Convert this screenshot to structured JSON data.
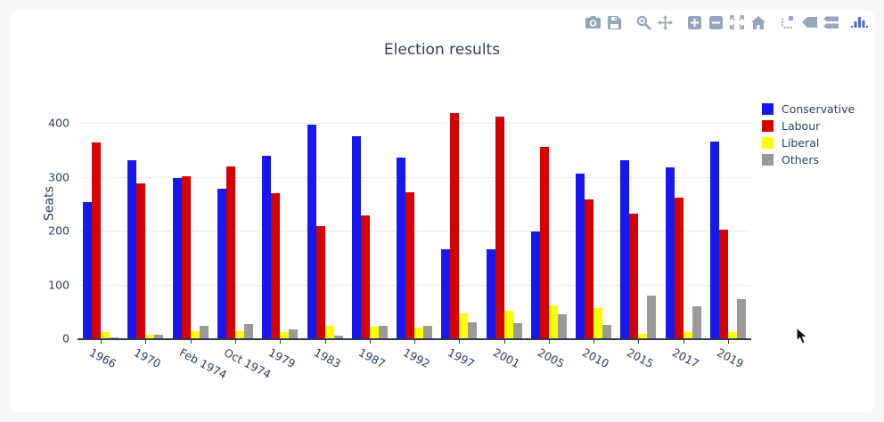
{
  "page": {
    "background_color": "#f7f7f8",
    "card_background_color": "#ffffff"
  },
  "toolbar": {
    "icon_color": "#97a5bb",
    "logo_color": "#4a69d4",
    "icons": [
      "camera-icon",
      "save-icon",
      "zoom-icon",
      "pan-icon",
      "zoom-in-icon",
      "zoom-out-icon",
      "autoscale-icon",
      "reset-axes-icon",
      "spikelines-icon",
      "hover-closest-icon",
      "hover-compare-icon",
      "plotly-logo-icon"
    ]
  },
  "chart_data": {
    "type": "bar",
    "title": "Election results",
    "xlabel": "",
    "ylabel": "Seats",
    "grid": true,
    "legend_position": "right",
    "tick_angle": 28,
    "ylim": [
      0,
      440
    ],
    "yticks": [
      0,
      100,
      200,
      300,
      400
    ],
    "categories": [
      "1966",
      "1970",
      "Feb 1974",
      "Oct 1974",
      "1979",
      "1983",
      "1987",
      "1992",
      "1997",
      "2001",
      "2005",
      "2010",
      "2015",
      "2017",
      "2019"
    ],
    "series": [
      {
        "name": "Conservative",
        "color": "#1717ef",
        "values": [
          253,
          330,
          297,
          277,
          339,
          397,
          376,
          336,
          165,
          166,
          198,
          306,
          330,
          317,
          365
        ]
      },
      {
        "name": "Labour",
        "color": "#d50000",
        "values": [
          364,
          288,
          301,
          319,
          269,
          209,
          229,
          271,
          418,
          412,
          355,
          258,
          232,
          262,
          202
        ]
      },
      {
        "name": "Liberal",
        "color": "#ffff00",
        "values": [
          12,
          6,
          14,
          13,
          11,
          23,
          22,
          20,
          46,
          52,
          62,
          57,
          8,
          12,
          11
        ]
      },
      {
        "name": "Others",
        "color": "#9a9a9a",
        "values": [
          2,
          6,
          23,
          26,
          16,
          5,
          23,
          24,
          30,
          29,
          45,
          25,
          80,
          59,
          72
        ]
      }
    ]
  }
}
